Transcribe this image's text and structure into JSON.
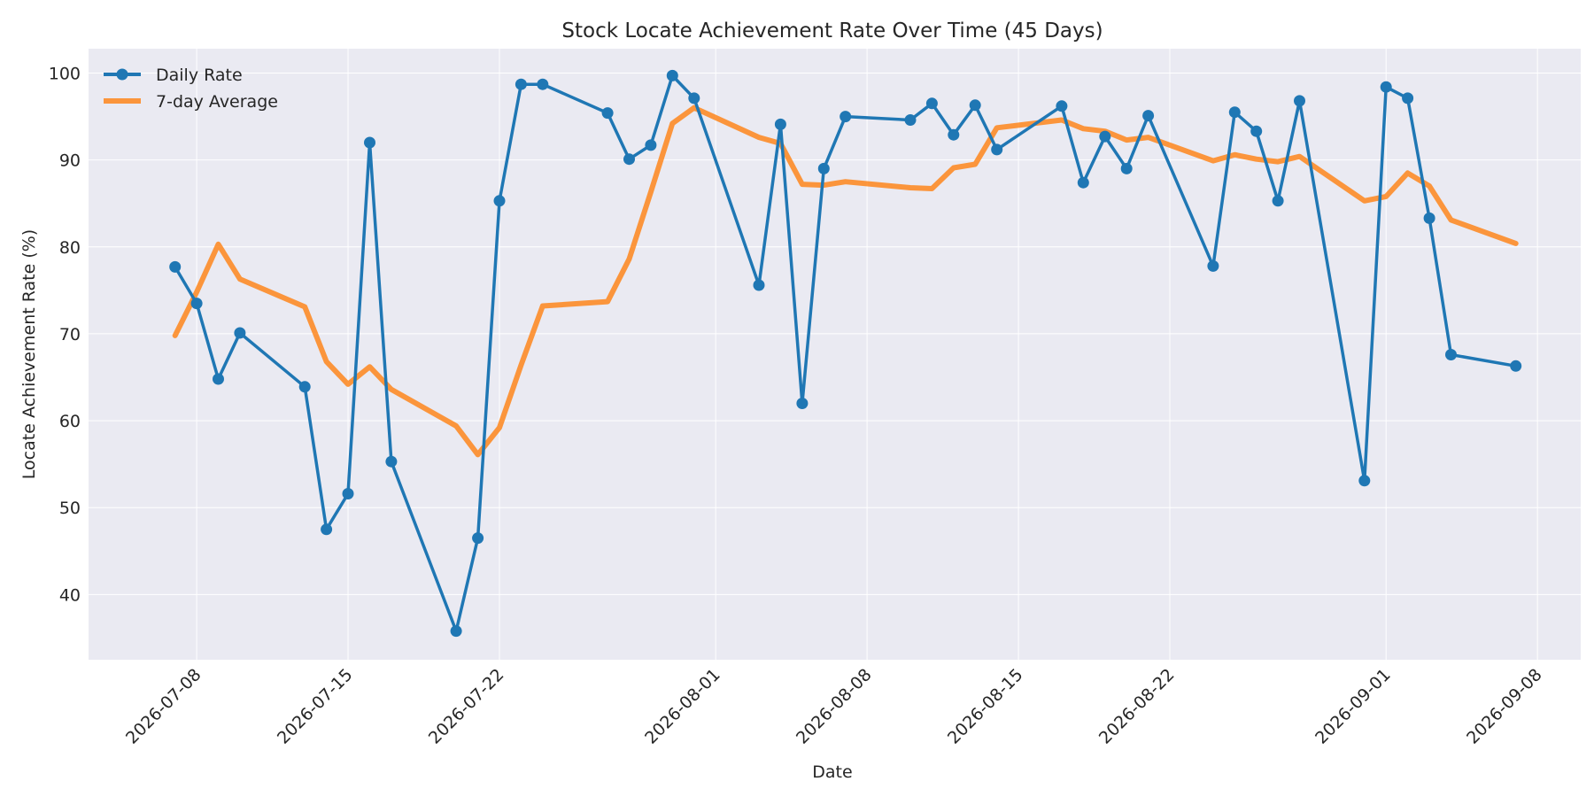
{
  "chart_data": {
    "type": "line",
    "title": "Stock Locate Achievement Rate Over Time (45 Days)",
    "xlabel": "Date",
    "ylabel": "Locate Achievement Rate (%)",
    "xlim": [
      "2026-07-03",
      "2026-09-10"
    ],
    "ylim": [
      32.5,
      102.8
    ],
    "x_ticks": [
      "2026-07-08",
      "2026-07-15",
      "2026-07-22",
      "2026-08-01",
      "2026-08-08",
      "2026-08-15",
      "2026-08-22",
      "2026-09-01",
      "2026-09-08"
    ],
    "y_ticks": [
      40,
      50,
      60,
      70,
      80,
      90,
      100
    ],
    "grid": true,
    "legend_position": "top-left",
    "x": [
      "2026-07-07",
      "2026-07-08",
      "2026-07-09",
      "2026-07-10",
      "2026-07-13",
      "2026-07-14",
      "2026-07-15",
      "2026-07-16",
      "2026-07-17",
      "2026-07-20",
      "2026-07-21",
      "2026-07-22",
      "2026-07-23",
      "2026-07-24",
      "2026-07-27",
      "2026-07-28",
      "2026-07-29",
      "2026-07-30",
      "2026-07-31",
      "2026-08-03",
      "2026-08-04",
      "2026-08-05",
      "2026-08-06",
      "2026-08-07",
      "2026-08-10",
      "2026-08-11",
      "2026-08-12",
      "2026-08-13",
      "2026-08-14",
      "2026-08-17",
      "2026-08-18",
      "2026-08-19",
      "2026-08-20",
      "2026-08-21",
      "2026-08-24",
      "2026-08-25",
      "2026-08-26",
      "2026-08-27",
      "2026-08-28",
      "2026-08-31",
      "2026-09-01",
      "2026-09-02",
      "2026-09-03",
      "2026-09-04",
      "2026-09-07"
    ],
    "series": [
      {
        "name": "Daily Rate",
        "color": "#1f77b4",
        "marker": "circle",
        "values": [
          77.7,
          73.5,
          64.8,
          70.1,
          63.9,
          47.5,
          51.6,
          92.0,
          55.3,
          35.8,
          46.5,
          85.3,
          98.7,
          98.7,
          95.4,
          90.1,
          91.7,
          99.7,
          97.1,
          75.6,
          94.1,
          62.0,
          89.0,
          95.0,
          94.6,
          96.5,
          92.9,
          96.3,
          91.2,
          96.2,
          87.4,
          92.7,
          89.0,
          95.1,
          77.8,
          95.5,
          93.3,
          85.3,
          96.8,
          53.1,
          98.4,
          97.1,
          83.3,
          67.6,
          66.3
        ]
      },
      {
        "name": "7-day Average",
        "color": "#ff7f0e",
        "marker": "none",
        "values": [
          69.8,
          74.8,
          80.3,
          76.3,
          73.1,
          66.8,
          64.2,
          66.2,
          63.6,
          59.4,
          56.1,
          59.2,
          66.4,
          73.2,
          73.7,
          78.6,
          86.3,
          94.2,
          96.0,
          92.6,
          91.9,
          87.2,
          87.1,
          87.5,
          86.8,
          86.7,
          89.1,
          89.5,
          93.7,
          94.6,
          93.6,
          93.3,
          92.3,
          92.6,
          89.9,
          90.6,
          90.1,
          89.8,
          90.4,
          85.3,
          85.8,
          88.5,
          87.0,
          83.1,
          80.4
        ]
      }
    ]
  }
}
